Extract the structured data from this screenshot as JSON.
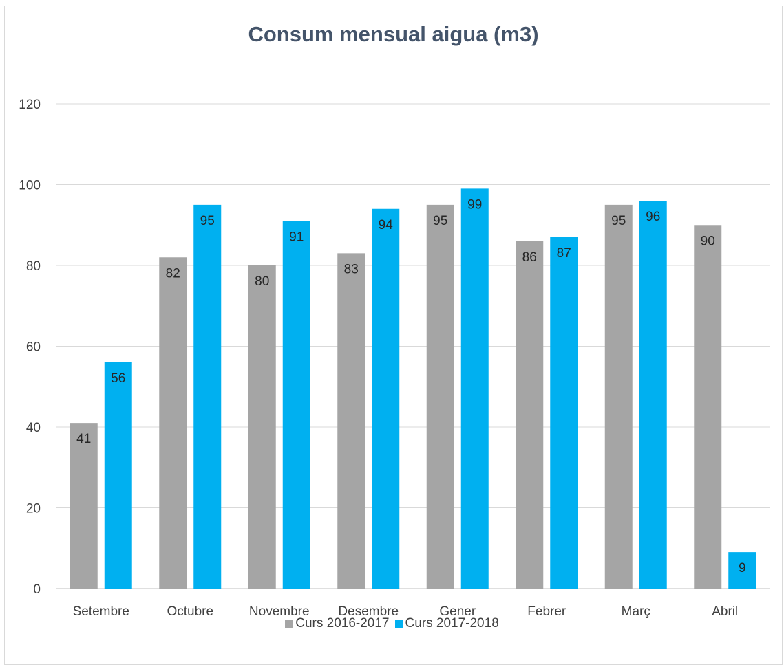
{
  "chart_data": {
    "type": "bar",
    "title": "Consum mensual aigua (m3)",
    "categories": [
      "Setembre",
      "Octubre",
      "Novembre",
      "Desembre",
      "Gener",
      "Febrer",
      "Març",
      "Abril"
    ],
    "series": [
      {
        "name": "Curs 2016-2017",
        "color": "#a5a5a5",
        "values": [
          41,
          82,
          80,
          83,
          95,
          86,
          95,
          90
        ]
      },
      {
        "name": "Curs 2017-2018",
        "color": "#00b0f0",
        "values": [
          56,
          95,
          91,
          94,
          99,
          87,
          96,
          9
        ]
      }
    ],
    "ylim": [
      0,
      120
    ],
    "yticks": [
      0,
      20,
      40,
      60,
      80,
      100,
      120
    ],
    "grid": true,
    "legend_position": "bottom",
    "data_labels": "inside-end"
  }
}
